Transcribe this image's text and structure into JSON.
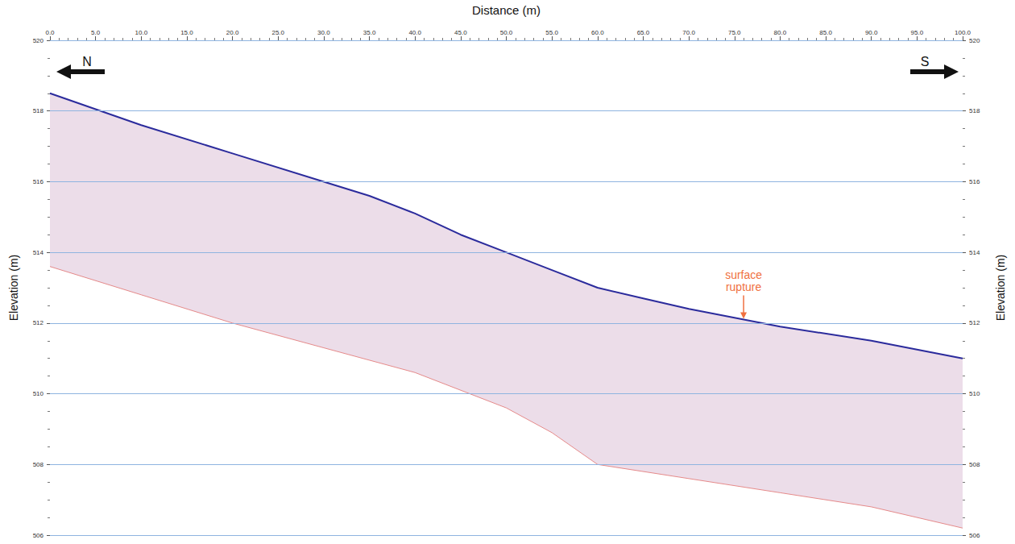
{
  "chart_data": {
    "type": "line",
    "x_label": "Distance (m)",
    "y_label": "Elevation (m)",
    "y2_label": "Elevation (m)",
    "xlim": [
      0,
      100
    ],
    "xticks": [
      {
        "value": 0,
        "label": "0.0"
      },
      {
        "value": 5,
        "label": "5.0"
      },
      {
        "value": 10,
        "label": "10.0"
      },
      {
        "value": 15,
        "label": "15.0"
      },
      {
        "value": 20,
        "label": "20.0"
      },
      {
        "value": 25,
        "label": "25.0"
      },
      {
        "value": 30,
        "label": "30.0"
      },
      {
        "value": 35,
        "label": "35.0"
      },
      {
        "value": 40,
        "label": "40.0"
      },
      {
        "value": 45,
        "label": "45.0"
      },
      {
        "value": 50,
        "label": "50.0"
      },
      {
        "value": 55,
        "label": "55.0"
      },
      {
        "value": 60,
        "label": "60.0"
      },
      {
        "value": 65,
        "label": "65.0"
      },
      {
        "value": 70,
        "label": "70.0"
      },
      {
        "value": 75,
        "label": "75.0"
      },
      {
        "value": 80,
        "label": "80.0"
      },
      {
        "value": 85,
        "label": "85.0"
      },
      {
        "value": 90,
        "label": "90.0"
      },
      {
        "value": 95,
        "label": "95.0"
      },
      {
        "value": 100,
        "label": "100.0"
      }
    ],
    "ylim": [
      506,
      520
    ],
    "yticks": [
      506,
      508,
      510,
      512,
      514,
      516,
      518,
      520
    ],
    "y2lim": [
      506,
      520
    ],
    "y2ticks": [
      506,
      508,
      510,
      512,
      514,
      516,
      518,
      520
    ],
    "grid": true,
    "series": [
      {
        "x": [
          0,
          10,
          20,
          30,
          35,
          40,
          45,
          50,
          55,
          60,
          65,
          70,
          80,
          90,
          100
        ],
        "values": [
          518.5,
          517.6,
          516.8,
          516.0,
          515.6,
          515.1,
          514.5,
          514.0,
          513.5,
          513.0,
          512.7,
          512.4,
          511.9,
          511.5,
          511.0
        ],
        "color": "#2b2b9c"
      },
      {
        "x": [
          0,
          10,
          20,
          30,
          40,
          50,
          55,
          60,
          70,
          80,
          90,
          100
        ],
        "values": [
          513.6,
          512.8,
          512.0,
          511.3,
          510.6,
          509.6,
          508.9,
          508.0,
          507.6,
          507.2,
          506.8,
          506.2
        ],
        "color": "#e58a8a"
      }
    ],
    "annotations": [
      {
        "text": "surface rupture",
        "x": 76,
        "y": 512.1,
        "color": "#f07040"
      }
    ],
    "direction_labels": [
      "N",
      "S"
    ]
  }
}
